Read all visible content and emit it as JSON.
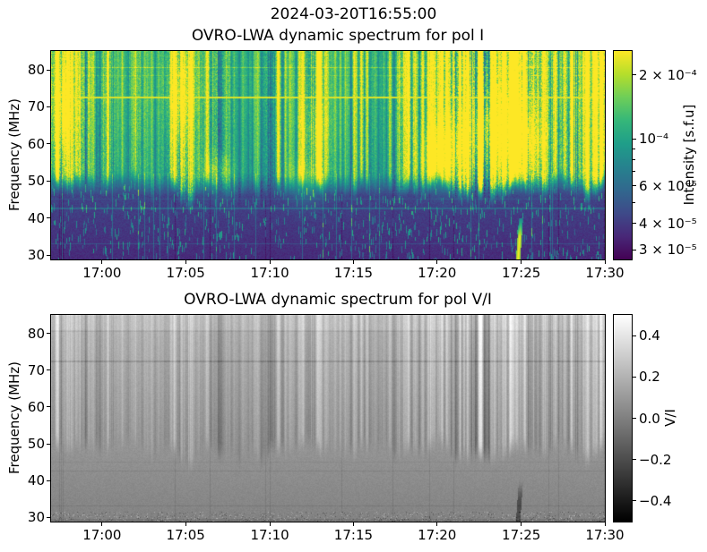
{
  "figure": {
    "suptitle": "2024-03-20T16:55:00",
    "background": "#ffffff",
    "text_color": "#000000"
  },
  "chart_data": [
    {
      "type": "heatmap",
      "title": "OVRO-LWA dynamic spectrum for pol I",
      "xlabel": "",
      "ylabel": "Frequency (MHz)",
      "ylim": [
        28.8,
        85.1
      ],
      "x_range": [
        "16:57",
        "17:30"
      ],
      "x_ticks": {
        "labels": [
          "17:00",
          "17:05",
          "17:10",
          "17:15",
          "17:20",
          "17:25",
          "17:30"
        ],
        "fracs": [
          0.092,
          0.243,
          0.395,
          0.546,
          0.697,
          0.849,
          1.0
        ]
      },
      "y_ticks": {
        "values": [
          30,
          40,
          50,
          60,
          70,
          80
        ],
        "labels": [
          "30",
          "40",
          "50",
          "60",
          "70",
          "80"
        ]
      },
      "grid": false,
      "colormap": {
        "name": "viridis",
        "stops": [
          "#440154",
          "#482878",
          "#3e4a89",
          "#31688e",
          "#26828e",
          "#1f9e89",
          "#35b779",
          "#6ece58",
          "#b5de2b",
          "#fde725"
        ]
      },
      "colorbar": {
        "label": "Intensity [s.f.u]",
        "scale": "log",
        "vmin": 2.7e-05,
        "vmax": 0.00026,
        "major_ticks": [
          {
            "value": 0.0002,
            "label": "2 × 10⁻⁴"
          },
          {
            "value": 0.0001,
            "label": "10⁻⁴"
          },
          {
            "value": 6e-05,
            "label": "6 × 10⁻⁵"
          },
          {
            "value": 4e-05,
            "label": "4 × 10⁻⁵"
          },
          {
            "value": 3e-05,
            "label": "3 × 10⁻⁵"
          }
        ],
        "minor_ticks": [
          5e-05,
          7e-05,
          8e-05,
          9e-05
        ]
      },
      "features": [
        "bright horizontal RFI line at ~72.4 MHz across full time range",
        "faint horizontal lines near 80.6, 78.4, 45.0, 42.5 and 33.1 MHz",
        "broadband vertical emission streaks above ~48 MHz, strongest near 16:58, 17:05-17:07, 17:12, and 17:19-17:28",
        "large bright patches 17:20-17:26 between 55-70 MHz",
        "narrow intense burst at ~17:25 below 40 MHz (brightest 29-35 MHz)",
        "dark quiet band below ~45 MHz with scattered cyan speckles and thin vertical streaks"
      ]
    },
    {
      "type": "heatmap",
      "title": "OVRO-LWA dynamic spectrum for pol V/I",
      "xlabel": "",
      "ylabel": "Frequency (MHz)",
      "ylim": [
        28.8,
        85.1
      ],
      "x_range": [
        "16:57",
        "17:30"
      ],
      "x_ticks": {
        "labels": [
          "17:00",
          "17:05",
          "17:10",
          "17:15",
          "17:20",
          "17:25",
          "17:30"
        ],
        "fracs": [
          0.092,
          0.243,
          0.395,
          0.546,
          0.697,
          0.849,
          1.0
        ]
      },
      "y_ticks": {
        "values": [
          30,
          40,
          50,
          60,
          70,
          80
        ],
        "labels": [
          "30",
          "40",
          "50",
          "60",
          "70",
          "80"
        ]
      },
      "grid": false,
      "colormap": {
        "name": "grayscale",
        "stops": [
          "#000000",
          "#ffffff"
        ]
      },
      "colorbar": {
        "label": "V/I",
        "scale": "linear",
        "vmin": -0.5,
        "vmax": 0.5,
        "major_ticks": [
          {
            "value": 0.4,
            "label": "0.4"
          },
          {
            "value": 0.2,
            "label": "0.2"
          },
          {
            "value": 0.0,
            "label": "0.0"
          },
          {
            "value": -0.2,
            "label": "−0.2"
          },
          {
            "value": -0.4,
            "label": "−0.4"
          }
        ],
        "minor_ticks": []
      },
      "features": [
        "light gray background (V/I ~ +0.1 to +0.2) at high frequencies fading to medium gray (~0.0) below",
        "bright white vertical streaks above ~55 MHz mirroring pol I activity",
        "faint dark horizontal lines at ~80.6 and ~72.4 MHz",
        "dark narrow streak at ~17:25 below 40 MHz matching the pol I burst",
        "speckled noisy rows below ~31 MHz"
      ]
    }
  ]
}
